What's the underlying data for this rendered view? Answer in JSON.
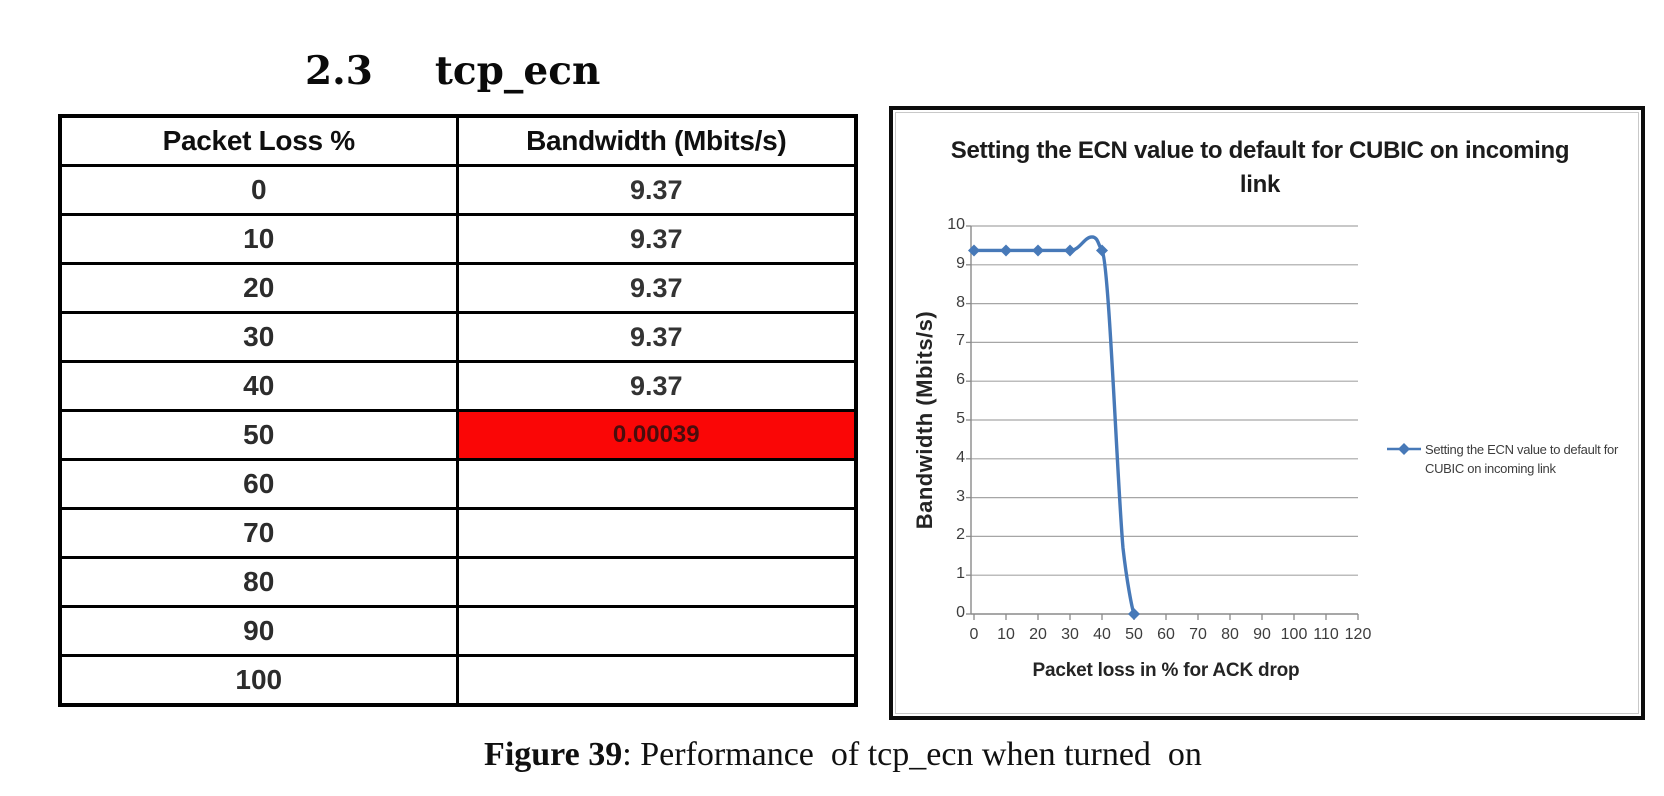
{
  "heading": {
    "number": "2.3",
    "title": "tcp_ecn"
  },
  "table": {
    "columns": [
      "Packet Loss %",
      "Bandwidth (Mbits/s)"
    ],
    "rows": [
      {
        "loss": "0",
        "bandwidth": "9.37",
        "highlight": false
      },
      {
        "loss": "10",
        "bandwidth": "9.37",
        "highlight": false
      },
      {
        "loss": "20",
        "bandwidth": "9.37",
        "highlight": false
      },
      {
        "loss": "30",
        "bandwidth": "9.37",
        "highlight": false
      },
      {
        "loss": "40",
        "bandwidth": "9.37",
        "highlight": false
      },
      {
        "loss": "50",
        "bandwidth": "0.00039",
        "highlight": true
      },
      {
        "loss": "60",
        "bandwidth": "",
        "highlight": false
      },
      {
        "loss": "70",
        "bandwidth": "",
        "highlight": false
      },
      {
        "loss": "80",
        "bandwidth": "",
        "highlight": false
      },
      {
        "loss": "90",
        "bandwidth": "",
        "highlight": false
      },
      {
        "loss": "100",
        "bandwidth": "",
        "highlight": false
      }
    ],
    "highlight_color": "#fa0606"
  },
  "chart": {
    "title_lines": [
      "Setting the ECN value to default for CUBIC on incoming",
      "link"
    ],
    "legend_lines": [
      "Setting the ECN value to default for",
      "CUBIC on incoming link"
    ],
    "series_color": "#4779b8",
    "gridline_color": "#a6a6a6",
    "axis_color": "#8a8a8a"
  },
  "chart_data": {
    "type": "line",
    "title": "Setting the ECN value to default for CUBIC on incoming link",
    "xlabel": "Packet loss in % for ACK drop",
    "ylabel": "Bandwidth (Mbits/s)",
    "series": [
      {
        "name": "Setting the ECN value to default for CUBIC on incoming link",
        "x": [
          0,
          10,
          20,
          30,
          40,
          50
        ],
        "y": [
          9.37,
          9.37,
          9.37,
          9.37,
          9.37,
          0.00039
        ]
      }
    ],
    "xticks": [
      0,
      10,
      20,
      30,
      40,
      50,
      60,
      70,
      80,
      90,
      100,
      110,
      120
    ],
    "yticks": [
      0,
      1,
      2,
      3,
      4,
      5,
      6,
      7,
      8,
      9,
      10
    ],
    "xlim": [
      0,
      120
    ],
    "ylim": [
      0,
      10
    ],
    "grid": true,
    "legend_position": "right",
    "marker": "diamond",
    "smooth_line": true
  },
  "caption": {
    "label": "Figure 39",
    "text": ": Performance  of tcp_ecn when turned  on"
  }
}
